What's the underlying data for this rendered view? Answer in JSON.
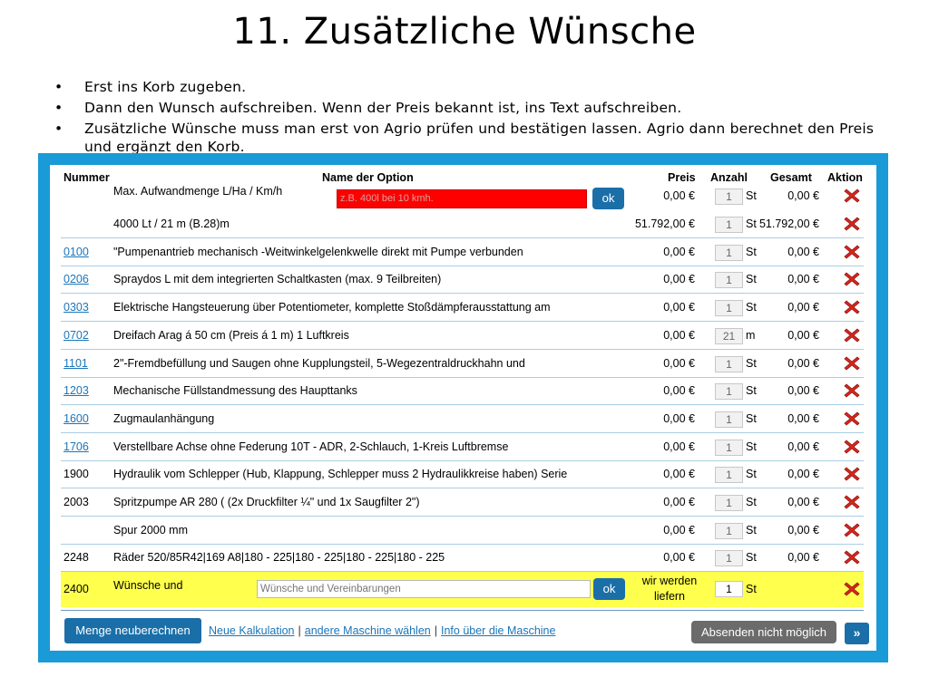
{
  "slide": {
    "title": "11. Zusätzliche Wünsche",
    "bullet_char": "•",
    "bullets": [
      "Erst ins Korb zugeben.",
      "Dann den Wunsch aufschreiben. Wenn der Preis bekannt ist, ins Text aufschreiben.",
      "Zusätzliche Wünsche muss man erst von Agrio prüfen und bestätigen lassen. Agrio dann berechnet den Preis und ergänzt den Korb."
    ]
  },
  "table": {
    "headers": {
      "number": "Nummer",
      "option": "Name der Option",
      "price": "Preis",
      "qty": "Anzahl",
      "total": "Gesamt",
      "action": "Aktion"
    },
    "rows": [
      {
        "number": "",
        "name": "Max. Aufwandmenge L/Ha / Km/h",
        "price": "0,00 €",
        "qty": "1",
        "unit": "St",
        "total": "0,00 €",
        "link": false
      },
      {
        "number": "",
        "name": "4000 Lt / 21 m (B.28)m",
        "price": "51.792,00 €",
        "qty": "1",
        "unit": "St",
        "total": "51.792,00 €",
        "link": false
      },
      {
        "number": "0100",
        "name": "\"Pumpenantrieb mechanisch -Weitwinkelgelenkwelle direkt mit Pumpe verbunden",
        "price": "0,00 €",
        "qty": "1",
        "unit": "St",
        "total": "0,00 €",
        "link": true
      },
      {
        "number": "0206",
        "name": "Spraydos L mit dem integrierten Schaltkasten (max. 9 Teilbreiten)",
        "price": "0,00 €",
        "qty": "1",
        "unit": "St",
        "total": "0,00 €",
        "link": true
      },
      {
        "number": "0303",
        "name": "Elektrische Hangsteuerung über Potentiometer, komplette Stoßdämpferausstattung am",
        "price": "0,00 €",
        "qty": "1",
        "unit": "St",
        "total": "0,00 €",
        "link": true
      },
      {
        "number": "0702",
        "name": "Dreifach Arag á 50 cm (Preis á 1 m) 1 Luftkreis",
        "price": "0,00 €",
        "qty": "21",
        "unit": "m",
        "total": "0,00 €",
        "link": true
      },
      {
        "number": "1101",
        "name": "2\"-Fremdbefüllung und Saugen ohne Kupplungsteil, 5-Wegezentraldruckhahn und",
        "price": "0,00 €",
        "qty": "1",
        "unit": "St",
        "total": "0,00 €",
        "link": true
      },
      {
        "number": "1203",
        "name": "Mechanische Füllstandmessung des Haupttanks",
        "price": "0,00 €",
        "qty": "1",
        "unit": "St",
        "total": "0,00 €",
        "link": true
      },
      {
        "number": "1600",
        "name": "Zugmaulanhängung",
        "price": "0,00 €",
        "qty": "1",
        "unit": "St",
        "total": "0,00 €",
        "link": true
      },
      {
        "number": "1706",
        "name": "Verstellbare Achse ohne Federung 10T - ADR, 2-Schlauch, 1-Kreis Luftbremse",
        "price": "0,00 €",
        "qty": "1",
        "unit": "St",
        "total": "0,00 €",
        "link": true
      },
      {
        "number": "1900",
        "name": "Hydraulik vom Schlepper (Hub, Klappung, Schlepper muss 2 Hydraulikkreise haben) Serie",
        "price": "0,00 €",
        "qty": "1",
        "unit": "St",
        "total": "0,00 €",
        "link": false
      },
      {
        "number": "2003",
        "name": "Spritzpumpe AR 280 ( (2x Druckfilter ¼\" und 1x Saugfilter 2\")",
        "price": "0,00 €",
        "qty": "1",
        "unit": "St",
        "total": "0,00 €",
        "link": false
      },
      {
        "number": "",
        "name": "Spur 2000 mm",
        "price": "0,00 €",
        "qty": "1",
        "unit": "St",
        "total": "0,00 €",
        "link": false
      },
      {
        "number": "2248",
        "name": "Räder 520/85R42|169 A8|180 - 225|180 - 225|180 - 225|180 - 225",
        "price": "0,00 €",
        "qty": "1",
        "unit": "St",
        "total": "0,00 €",
        "link": false
      }
    ],
    "first_row_input_placeholder": "z.B. 400l bei 10 kmh.",
    "ok_label": "ok",
    "wish_row": {
      "number": "2400",
      "name": "Wünsche und",
      "input_placeholder": "Wünsche und Vereinbarungen",
      "price_note_line1": "wir werden",
      "price_note_line2": "liefern",
      "qty": "1",
      "unit": "St"
    }
  },
  "footer": {
    "recalc_label": "Menge neuberechnen",
    "link_new_calc": "Neue Kalkulation",
    "link_other_machine": "andere Maschine wählen",
    "link_info": "Info über die Maschine",
    "separator": "|",
    "send_label": "Absenden nicht möglich",
    "next_label": "»"
  },
  "colors": {
    "frame_blue": "#1a9ad6",
    "button_blue": "#1b6fa8",
    "link_blue": "#1b75b8",
    "highlight_yellow": "#ffff4d",
    "input_red": "#ff0000",
    "delete_red": "#d9261c"
  },
  "icons": {
    "delete": "delete-x-icon"
  }
}
